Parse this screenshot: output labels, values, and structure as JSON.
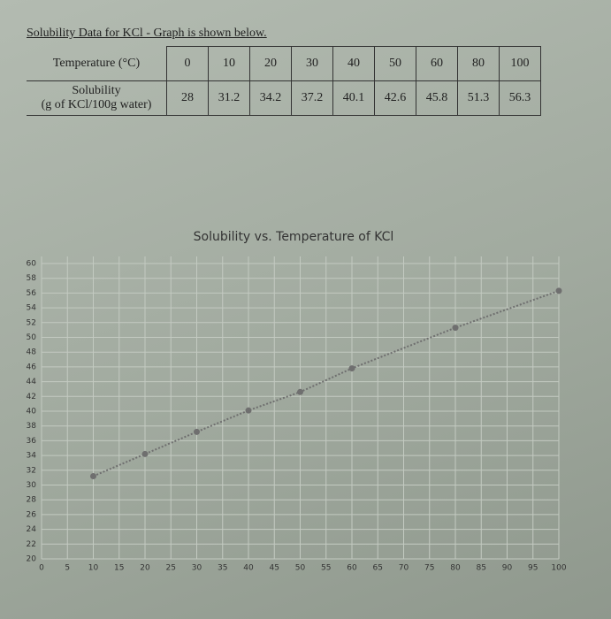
{
  "header": {
    "title": "Solubility Data for KCl - Graph is shown below."
  },
  "table": {
    "rows": [
      {
        "label": [
          "Temperature (°C)"
        ],
        "cells": [
          0,
          10,
          20,
          30,
          40,
          50,
          60,
          80,
          100
        ]
      },
      {
        "label": [
          "Solubility",
          "(g of KCl/100g water)"
        ],
        "cells": [
          28,
          31.2,
          34.2,
          37.2,
          40.1,
          42.6,
          45.8,
          51.3,
          56.3
        ]
      }
    ]
  },
  "chart_data": {
    "type": "line",
    "title": "Solubility vs. Temperature of KCl",
    "x": [
      10,
      20,
      30,
      40,
      50,
      60,
      80,
      100
    ],
    "values": [
      31.2,
      34.2,
      37.2,
      40.1,
      42.6,
      45.8,
      51.3,
      56.3
    ],
    "color": "#6f6f6f",
    "line_style": "dotted",
    "xlim": [
      0,
      100
    ],
    "xticks": [
      0,
      5,
      10,
      15,
      20,
      25,
      30,
      35,
      40,
      45,
      50,
      55,
      60,
      65,
      70,
      75,
      80,
      85,
      90,
      95,
      100
    ],
    "ylim": [
      20,
      60
    ],
    "yticks": [
      20,
      22,
      24,
      26,
      28,
      30,
      32,
      34,
      36,
      38,
      40,
      42,
      44,
      46,
      48,
      50,
      52,
      54,
      56,
      58,
      60
    ],
    "grid": true
  }
}
